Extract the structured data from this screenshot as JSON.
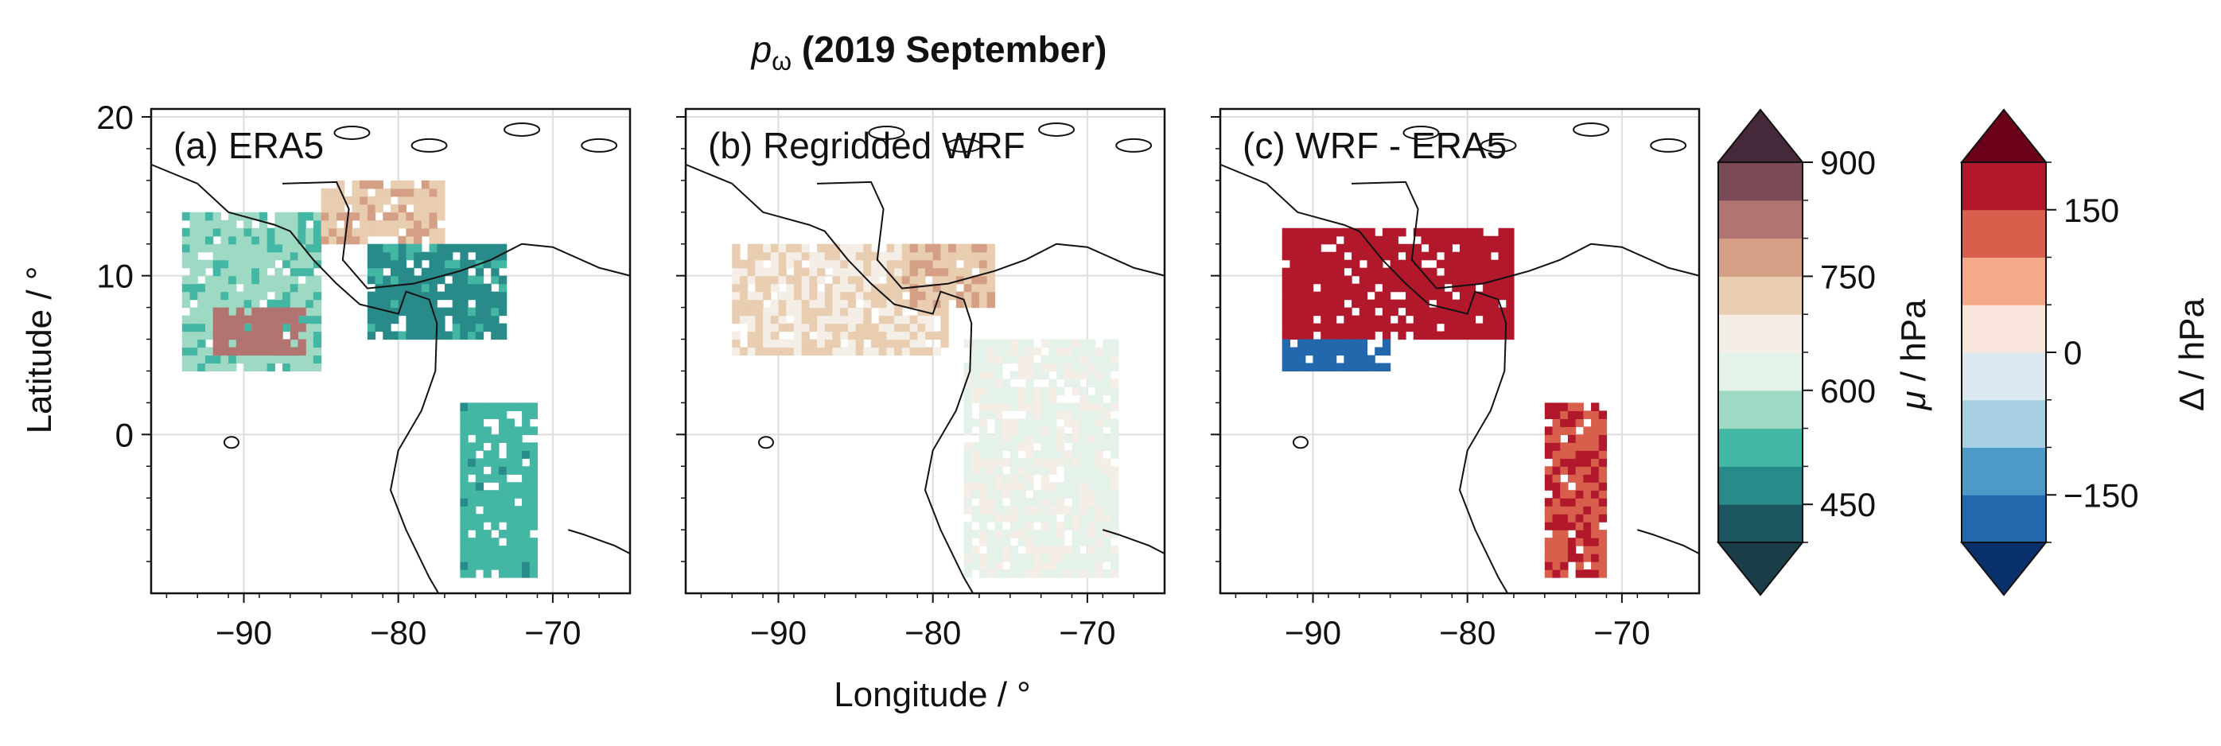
{
  "figure": {
    "title_var": "p",
    "title_sub": "ω",
    "title_rest": " (2019 September)",
    "xlabel": "Longitude / °",
    "ylabel": "Latitude / °"
  },
  "chart_data": [
    {
      "type": "heatmap",
      "title": "(a) ERA5",
      "xlim": [
        -96,
        -65
      ],
      "ylim": [
        -10,
        20.5
      ],
      "xticks": [
        -90,
        -80,
        -70
      ],
      "xtick_labels": [
        "−90",
        "−80",
        "−70"
      ],
      "yticks": [
        0,
        10,
        20
      ],
      "ytick_labels": [
        "0",
        "10",
        "20"
      ],
      "grid": true,
      "colorbar": "mu",
      "regions": [
        {
          "lat": [
            4,
            14
          ],
          "lon": [
            -94,
            -85
          ],
          "value": 560
        },
        {
          "lat": [
            5,
            8
          ],
          "lon": [
            -92,
            -86
          ],
          "value": 820
        },
        {
          "lat": [
            12,
            16
          ],
          "lon": [
            -85,
            -77
          ],
          "value": 740
        },
        {
          "lat": [
            6,
            12
          ],
          "lon": [
            -82,
            -73
          ],
          "value": 480
        },
        {
          "lat": [
            -9,
            2
          ],
          "lon": [
            -76,
            -71
          ],
          "value": 520
        }
      ]
    },
    {
      "type": "heatmap",
      "title": "(b) Regridded WRF",
      "xlim": [
        -96,
        -65
      ],
      "ylim": [
        -10,
        20.5
      ],
      "xticks": [
        -90,
        -80,
        -70
      ],
      "xtick_labels": [
        "−90",
        "−80",
        "−70"
      ],
      "yticks": [
        0,
        10,
        20
      ],
      "ytick_labels": [
        "0",
        "10",
        "20"
      ],
      "grid": true,
      "colorbar": "mu",
      "regions": [
        {
          "lat": [
            5,
            12
          ],
          "lon": [
            -93,
            -79
          ],
          "value": 700
        },
        {
          "lat": [
            8,
            12
          ],
          "lon": [
            -82,
            -76
          ],
          "value": 740
        },
        {
          "lat": [
            -9,
            6
          ],
          "lon": [
            -78,
            -68
          ],
          "value": 640
        }
      ]
    },
    {
      "type": "heatmap",
      "title": "(c) WRF - ERA5",
      "xlim": [
        -96,
        -65
      ],
      "ylim": [
        -10,
        20.5
      ],
      "xticks": [
        -90,
        -80,
        -70
      ],
      "xtick_labels": [
        "−90",
        "−80",
        "−70"
      ],
      "yticks": [
        0,
        10,
        20
      ],
      "ytick_labels": [
        "0",
        "10",
        "20"
      ],
      "grid": true,
      "colorbar": "delta",
      "regions": [
        {
          "lat": [
            6,
            13
          ],
          "lon": [
            -92,
            -77
          ],
          "value": 170
        },
        {
          "lat": [
            4,
            6
          ],
          "lon": [
            -92,
            -85
          ],
          "value": -180
        },
        {
          "lat": [
            -9,
            2
          ],
          "lon": [
            -75,
            -71
          ],
          "value": 140
        }
      ]
    }
  ],
  "colorbars": {
    "mu": {
      "label_sym": "μ",
      "label_unit": " / hPa",
      "levels": [
        400,
        450,
        500,
        550,
        600,
        650,
        700,
        750,
        800,
        850,
        900
      ],
      "tick_values": [
        450,
        600,
        750,
        900
      ],
      "tick_labels": [
        "450",
        "600",
        "750",
        "900"
      ],
      "colors": [
        "#1b5560",
        "#288b8a",
        "#44b6a4",
        "#9ed9c3",
        "#e4f2ea",
        "#f4eee6",
        "#e8cdb1",
        "#d49f85",
        "#b27470",
        "#7a4b57"
      ],
      "under_color": "#1a3d48",
      "over_color": "#45293a"
    },
    "delta": {
      "label_sym": "Δ",
      "label_unit": " / hPa",
      "levels": [
        -200,
        -150,
        -100,
        -50,
        0,
        50,
        100,
        150,
        200
      ],
      "tick_values": [
        -150,
        0,
        150
      ],
      "tick_labels": [
        "−150",
        "0",
        "150"
      ],
      "colors": [
        "#2367ac",
        "#4d99c7",
        "#a6cfe3",
        "#dde9f1",
        "#f9e5db",
        "#f4aa89",
        "#d85f4c",
        "#b2182b"
      ],
      "under_color": "#08306b",
      "over_color": "#6b0119"
    }
  }
}
